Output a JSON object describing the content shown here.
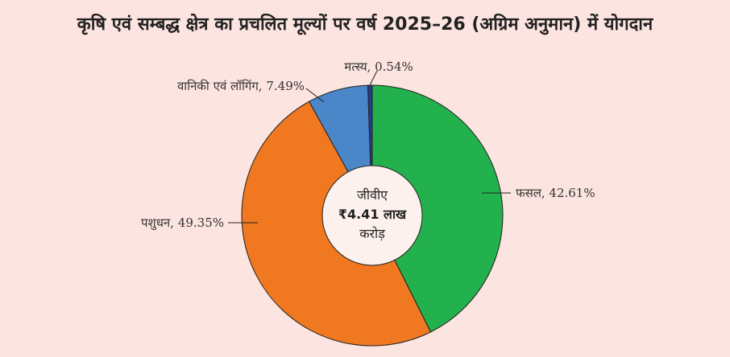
{
  "chart_data": {
    "type": "pie",
    "title": "कृषि एवं सम्बद्ध क्षेत्र का प्रचलित मूल्यों पर वर्ष 2025–26 (अग्रिम अनुमान) में योगदान",
    "categories": [
      "फसल",
      "पशुधन",
      "वानिकी एवं लॉगिंग",
      "मत्स्य"
    ],
    "values": [
      42.61,
      49.35,
      7.49,
      0.54
    ],
    "slice_labels": [
      "फसल, 42.61%",
      "पशुधन, 49.35%",
      "वानिकी एवं लॉगिंग, 7.49%",
      "मत्स्य, 0.54%"
    ],
    "colors": [
      "#22b14c",
      "#f07820",
      "#4a86c8",
      "#2a3a8c"
    ],
    "donut": true,
    "center_label": {
      "line1": "जीवीए",
      "line2": "₹4.41 लाख",
      "line3": "करोड़"
    },
    "legend": "none"
  }
}
